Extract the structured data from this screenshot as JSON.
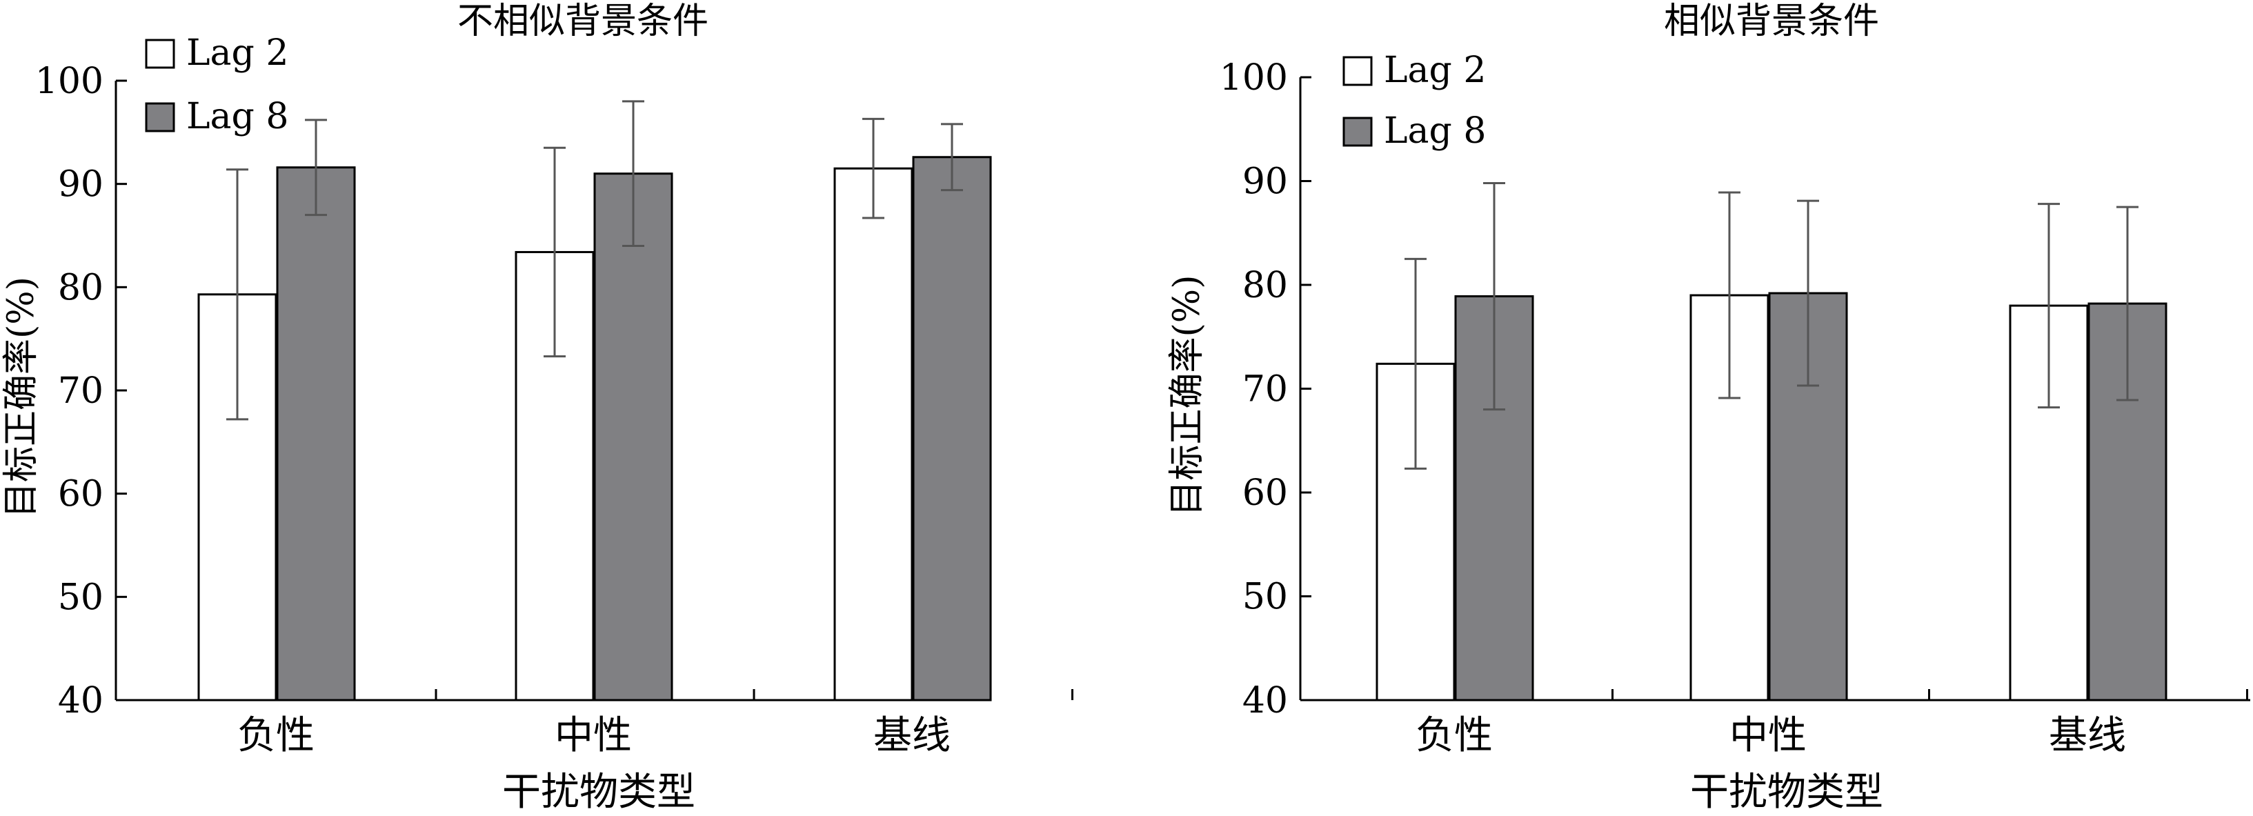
{
  "chart_data": [
    {
      "type": "bar",
      "title": "不相似背景条件",
      "xlabel": "干扰物类型",
      "ylabel": "目标正确率(%)",
      "categories": [
        "负性",
        "中性",
        "基线"
      ],
      "ylim": [
        40,
        100
      ],
      "yticks": [
        40,
        50,
        60,
        70,
        80,
        90,
        100
      ],
      "legend_position": "top-left",
      "series": [
        {
          "name": "Lag 2",
          "color": "#ffffff",
          "values": [
            79.3,
            83.4,
            91.5
          ],
          "errors": [
            12.1,
            10.1,
            4.8
          ]
        },
        {
          "name": "Lag 8",
          "color": "#808083",
          "values": [
            91.6,
            91.0,
            92.6
          ],
          "errors": [
            4.6,
            7.0,
            3.2
          ]
        }
      ]
    },
    {
      "type": "bar",
      "title": "相似背景条件",
      "xlabel": "干扰物类型",
      "ylabel": "目标正确率(%)",
      "categories": [
        "负性",
        "中性",
        "基线"
      ],
      "ylim": [
        40,
        100
      ],
      "yticks": [
        40,
        50,
        60,
        70,
        80,
        90,
        100
      ],
      "legend_position": "top-left",
      "series": [
        {
          "name": "Lag 2",
          "color": "#ffffff",
          "values": [
            72.4,
            79.0,
            78.0
          ],
          "errors": [
            10.1,
            9.9,
            9.8
          ]
        },
        {
          "name": "Lag 8",
          "color": "#808083",
          "values": [
            78.9,
            79.2,
            78.2
          ],
          "errors": [
            10.9,
            8.9,
            9.3
          ]
        }
      ]
    }
  ]
}
